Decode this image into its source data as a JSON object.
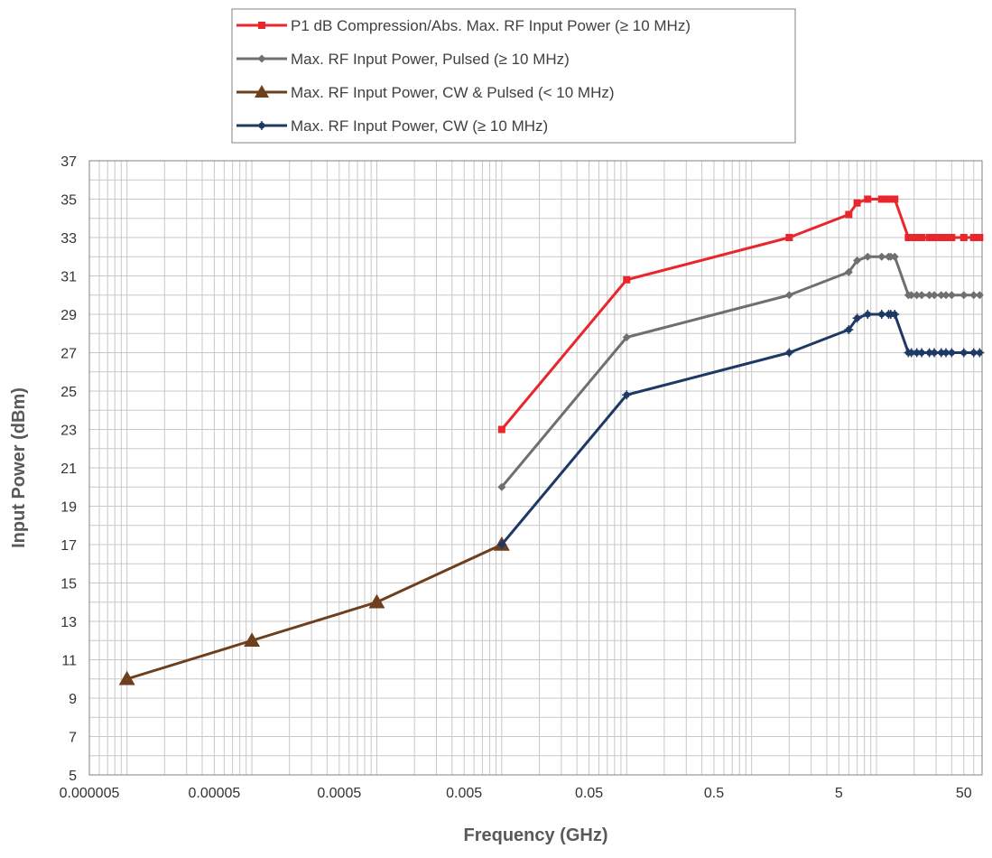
{
  "chart_data": {
    "type": "line",
    "title": "",
    "xlabel": "Frequency (GHz)",
    "ylabel": "Input Power (dBm)",
    "xscale": "log",
    "xlim": [
      5e-06,
      70
    ],
    "ylim": [
      5,
      37
    ],
    "grid": true,
    "legend_placement": "top-center",
    "x_ticks": [
      {
        "value": 5e-06,
        "label": "0.000005"
      },
      {
        "value": 5e-05,
        "label": "0.00005"
      },
      {
        "value": 0.0005,
        "label": "0.0005"
      },
      {
        "value": 0.005,
        "label": "0.005"
      },
      {
        "value": 0.05,
        "label": "0.05"
      },
      {
        "value": 0.5,
        "label": "0.5"
      },
      {
        "value": 5,
        "label": "5"
      },
      {
        "value": 50,
        "label": "50"
      }
    ],
    "y_ticks": [
      5,
      7,
      9,
      11,
      13,
      15,
      17,
      19,
      21,
      23,
      25,
      27,
      29,
      31,
      33,
      35,
      37
    ],
    "series": [
      {
        "name": "P1 dB Compression/Abs. Max. RF Input Power (≥ 10 MHz)",
        "color": "#e8262b",
        "marker": "square",
        "points": [
          [
            0.01,
            23
          ],
          [
            0.1,
            30.8
          ],
          [
            2,
            33
          ],
          [
            6,
            34.2
          ],
          [
            7,
            34.8
          ],
          [
            8.5,
            35
          ],
          [
            11,
            35
          ],
          [
            12.5,
            35
          ],
          [
            13,
            35
          ],
          [
            14,
            35
          ],
          [
            18,
            33
          ],
          [
            19,
            33
          ],
          [
            21,
            33
          ],
          [
            23,
            33
          ],
          [
            26.5,
            33
          ],
          [
            29,
            33
          ],
          [
            33,
            33
          ],
          [
            36,
            33
          ],
          [
            40,
            33
          ],
          [
            50,
            33
          ],
          [
            60,
            33
          ],
          [
            67,
            33
          ]
        ]
      },
      {
        "name": "Max. RF Input Power, Pulsed (≥ 10 MHz)",
        "color": "#6f6f6f",
        "marker": "diamond",
        "points": [
          [
            0.01,
            20
          ],
          [
            0.1,
            27.8
          ],
          [
            2,
            30
          ],
          [
            6,
            31.2
          ],
          [
            7,
            31.8
          ],
          [
            8.5,
            32
          ],
          [
            11,
            32
          ],
          [
            12.5,
            32
          ],
          [
            13,
            32
          ],
          [
            14,
            32
          ],
          [
            18,
            30
          ],
          [
            19,
            30
          ],
          [
            21,
            30
          ],
          [
            23,
            30
          ],
          [
            26.5,
            30
          ],
          [
            29,
            30
          ],
          [
            33,
            30
          ],
          [
            36,
            30
          ],
          [
            40,
            30
          ],
          [
            50,
            30
          ],
          [
            60,
            30
          ],
          [
            67,
            30
          ]
        ]
      },
      {
        "name": "Max. RF Input Power, CW & Pulsed (< 10 MHz)",
        "color": "#6e3f1c",
        "marker": "triangle",
        "points": [
          [
            1e-05,
            10
          ],
          [
            0.0001,
            12
          ],
          [
            0.001,
            14
          ],
          [
            0.01,
            17
          ]
        ]
      },
      {
        "name": "Max. RF Input Power, CW (≥ 10 MHz)",
        "color": "#1f3864",
        "marker": "star",
        "points": [
          [
            0.01,
            17
          ],
          [
            0.1,
            24.8
          ],
          [
            2,
            27
          ],
          [
            6,
            28.2
          ],
          [
            7,
            28.8
          ],
          [
            8.5,
            29
          ],
          [
            11,
            29
          ],
          [
            12.5,
            29
          ],
          [
            13,
            29
          ],
          [
            14,
            29
          ],
          [
            18,
            27
          ],
          [
            19,
            27
          ],
          [
            21,
            27
          ],
          [
            23,
            27
          ],
          [
            26.5,
            27
          ],
          [
            29,
            27
          ],
          [
            33,
            27
          ],
          [
            36,
            27
          ],
          [
            40,
            27
          ],
          [
            50,
            27
          ],
          [
            60,
            27
          ],
          [
            67,
            27
          ]
        ]
      }
    ]
  }
}
